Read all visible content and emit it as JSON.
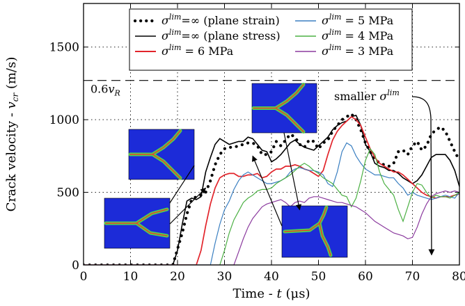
{
  "chart_data": {
    "type": "line",
    "title": "",
    "xlabel": "Time - t (μs)",
    "ylabel": "Crack velocity - v_cr (m/s)",
    "xlim": [
      0,
      80
    ],
    "ylim": [
      0,
      1800
    ],
    "xticks": [
      0,
      10,
      20,
      30,
      40,
      50,
      60,
      70,
      80
    ],
    "yticks": [
      0,
      500,
      1000,
      1500
    ],
    "grid": true,
    "legend_position": "top-right",
    "reference_line": {
      "y": 1270,
      "label": "0.6v_R"
    },
    "annotation": {
      "text": "smaller σ^lim",
      "target_x": 74,
      "target_y": 60
    },
    "series": [
      {
        "name": "σ^lim=∞ (plane strain)",
        "color": "#000000",
        "style": "dotted",
        "x": [
          0,
          5,
          10,
          15,
          19,
          21,
          22,
          23,
          24,
          25,
          26,
          27,
          28,
          29,
          30,
          31,
          32,
          33,
          34,
          35,
          36,
          37,
          38,
          39,
          40,
          41,
          42,
          43,
          44,
          45,
          46,
          47,
          48,
          49,
          50,
          51,
          52,
          53,
          54,
          55,
          56,
          57,
          58,
          59,
          60,
          61,
          62,
          63,
          64,
          65,
          66,
          67,
          68,
          69,
          70,
          71,
          72,
          73,
          74,
          75,
          76,
          77,
          78,
          79,
          80
        ],
        "y": [
          0,
          0,
          0,
          0,
          0,
          220,
          350,
          450,
          470,
          480,
          500,
          580,
          690,
          760,
          800,
          810,
          810,
          820,
          830,
          840,
          840,
          820,
          760,
          760,
          780,
          850,
          820,
          860,
          900,
          880,
          830,
          810,
          860,
          850,
          800,
          840,
          860,
          920,
          960,
          1000,
          1020,
          1040,
          1000,
          930,
          840,
          780,
          730,
          700,
          690,
          680,
          700,
          780,
          790,
          760,
          820,
          850,
          790,
          820,
          900,
          930,
          950,
          920,
          850,
          780,
          720
        ]
      },
      {
        "name": "σ^lim=∞ (plane stress)",
        "color": "#000000",
        "style": "solid",
        "x": [
          0,
          19,
          20,
          21,
          22,
          23,
          24,
          25,
          26,
          27,
          28,
          29,
          30,
          31,
          32,
          33,
          34,
          35,
          36,
          37,
          38,
          39,
          40,
          41,
          42,
          43,
          44,
          45,
          46,
          47,
          48,
          49,
          50,
          51,
          52,
          53,
          54,
          55,
          56,
          57,
          58,
          59,
          60,
          61,
          62,
          63,
          64,
          65,
          66,
          67,
          68,
          69,
          70,
          71,
          72,
          73,
          74,
          75,
          76,
          77,
          78,
          79,
          80
        ],
        "y": [
          0,
          0,
          100,
          280,
          440,
          460,
          450,
          470,
          640,
          740,
          830,
          870,
          850,
          830,
          840,
          850,
          850,
          880,
          870,
          830,
          790,
          780,
          710,
          730,
          760,
          800,
          840,
          860,
          830,
          810,
          800,
          790,
          820,
          850,
          880,
          930,
          960,
          980,
          990,
          1020,
          1030,
          960,
          830,
          780,
          700,
          680,
          670,
          650,
          650,
          630,
          600,
          580,
          560,
          580,
          620,
          680,
          740,
          760,
          760,
          760,
          720,
          650,
          540
        ]
      },
      {
        "name": "σ^lim = 6 MPa",
        "color": "#e2232a",
        "style": "solid",
        "x": [
          0,
          24,
          25,
          26,
          27,
          28,
          29,
          30,
          31,
          32,
          33,
          34,
          35,
          36,
          37,
          38,
          39,
          40,
          41,
          42,
          43,
          44,
          45,
          46,
          47,
          48,
          49,
          50,
          51,
          52,
          53,
          54,
          55,
          56,
          57,
          58,
          59,
          60,
          61,
          62,
          63,
          64,
          65,
          66,
          67,
          68,
          69,
          70,
          71,
          72,
          73,
          74,
          75,
          76,
          77,
          78,
          79,
          80
        ],
        "y": [
          0,
          0,
          100,
          270,
          420,
          530,
          600,
          620,
          630,
          630,
          610,
          610,
          620,
          620,
          630,
          600,
          610,
          640,
          660,
          660,
          680,
          680,
          690,
          680,
          660,
          650,
          630,
          610,
          650,
          760,
          860,
          920,
          960,
          990,
          1020,
          1000,
          960,
          880,
          800,
          740,
          700,
          680,
          660,
          640,
          640,
          620,
          590,
          560,
          530,
          500,
          480,
          470,
          460,
          470,
          470,
          470,
          480,
          490
        ]
      },
      {
        "name": "σ^lim = 5 MPa",
        "color": "#3a7fc1",
        "style": "solid",
        "x": [
          0,
          27,
          28,
          29,
          30,
          31,
          32,
          33,
          34,
          35,
          36,
          37,
          38,
          39,
          40,
          41,
          42,
          43,
          44,
          45,
          46,
          47,
          48,
          49,
          50,
          51,
          52,
          53,
          54,
          55,
          56,
          57,
          58,
          59,
          60,
          61,
          62,
          63,
          64,
          65,
          66,
          67,
          68,
          69,
          70,
          71,
          72,
          73,
          74,
          75,
          76,
          77,
          78,
          79,
          80
        ],
        "y": [
          0,
          0,
          150,
          280,
          380,
          440,
          520,
          580,
          620,
          640,
          620,
          600,
          580,
          560,
          560,
          570,
          580,
          600,
          640,
          660,
          670,
          660,
          650,
          650,
          640,
          620,
          560,
          540,
          640,
          780,
          840,
          820,
          750,
          700,
          660,
          640,
          620,
          620,
          610,
          600,
          600,
          560,
          530,
          480,
          500,
          480,
          470,
          460,
          450,
          460,
          470,
          480,
          470,
          460,
          500
        ]
      },
      {
        "name": "σ^lim = 4 MPa",
        "color": "#4bb043",
        "style": "solid",
        "x": [
          0,
          29,
          30,
          31,
          32,
          33,
          34,
          35,
          36,
          37,
          38,
          39,
          40,
          41,
          42,
          43,
          44,
          45,
          46,
          47,
          48,
          49,
          50,
          51,
          52,
          53,
          54,
          55,
          56,
          57,
          58,
          59,
          60,
          61,
          62,
          63,
          64,
          65,
          66,
          67,
          68,
          69,
          70,
          71,
          72,
          73,
          74,
          75,
          76,
          77,
          78,
          79,
          80
        ],
        "y": [
          0,
          0,
          100,
          220,
          310,
          370,
          430,
          460,
          480,
          510,
          520,
          520,
          530,
          560,
          580,
          600,
          620,
          650,
          680,
          700,
          680,
          650,
          630,
          600,
          580,
          560,
          520,
          480,
          470,
          400,
          460,
          580,
          720,
          800,
          760,
          640,
          560,
          520,
          480,
          380,
          300,
          400,
          500,
          560,
          550,
          500,
          460,
          480,
          470,
          470,
          460,
          480,
          500
        ]
      },
      {
        "name": "σ^lim = 3 MPa",
        "color": "#8b3a9e",
        "style": "solid",
        "x": [
          0,
          32,
          33,
          34,
          35,
          36,
          37,
          38,
          39,
          40,
          41,
          42,
          43,
          44,
          45,
          46,
          47,
          48,
          49,
          50,
          51,
          52,
          53,
          54,
          55,
          56,
          57,
          58,
          59,
          60,
          61,
          62,
          63,
          64,
          65,
          66,
          67,
          68,
          69,
          70,
          71,
          72,
          73,
          74,
          75,
          76,
          77,
          78,
          79,
          80
        ],
        "y": [
          0,
          0,
          90,
          180,
          260,
          320,
          360,
          400,
          420,
          430,
          440,
          450,
          430,
          400,
          430,
          440,
          430,
          460,
          470,
          470,
          460,
          450,
          440,
          430,
          430,
          420,
          410,
          400,
          380,
          360,
          330,
          300,
          280,
          260,
          240,
          220,
          210,
          200,
          180,
          190,
          260,
          350,
          420,
          470,
          490,
          500,
          510,
          500,
          510,
          500
        ]
      }
    ]
  },
  "insets": [
    {
      "id": "inset-a",
      "x": 14,
      "y": 210
    },
    {
      "id": "inset-b",
      "x": 26,
      "y": 530
    },
    {
      "id": "inset-c",
      "x": 36,
      "y": 750
    },
    {
      "id": "inset-d",
      "x": 46,
      "y": 380
    },
    {
      "id": "inset-e",
      "x": 58,
      "y": 660
    }
  ]
}
